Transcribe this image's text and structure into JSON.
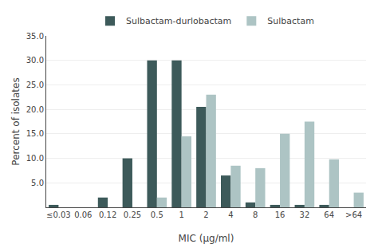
{
  "chart_data": {
    "type": "bar",
    "categories": [
      "≤0.03",
      "0.06",
      "0.12",
      "0.25",
      "0.5",
      "1",
      "2",
      "4",
      "8",
      "16",
      "32",
      "64",
      ">64"
    ],
    "series": [
      {
        "name": "Sulbactam-durlobactam",
        "color": "#3d5a5a",
        "values": [
          0.5,
          0.0,
          2.0,
          10.0,
          30.0,
          30.0,
          20.5,
          6.5,
          1.0,
          0.5,
          0.5,
          0.5,
          0.0
        ]
      },
      {
        "name": "Sulbactam",
        "color": "#adc4c4",
        "values": [
          0.0,
          0.0,
          0.0,
          0.0,
          2.0,
          14.5,
          23.0,
          8.5,
          8.0,
          15.0,
          17.5,
          9.8,
          3.0
        ]
      }
    ],
    "xlabel": "MIC (μg/ml)",
    "ylabel": "Percent of isolates",
    "ylim": [
      0,
      35.0
    ],
    "yticks": [
      {
        "value": 5.0,
        "label": "5.0"
      },
      {
        "value": 10.0,
        "label": "10.0"
      },
      {
        "value": 15.0,
        "label": "15.0"
      },
      {
        "value": 20.0,
        "label": "20.0"
      },
      {
        "value": 25.0,
        "label": "25.0"
      },
      {
        "value": 30.0,
        "label": "30.0"
      },
      {
        "value": 35.0,
        "label": "35.0"
      }
    ],
    "grid": true,
    "legend": "top"
  }
}
